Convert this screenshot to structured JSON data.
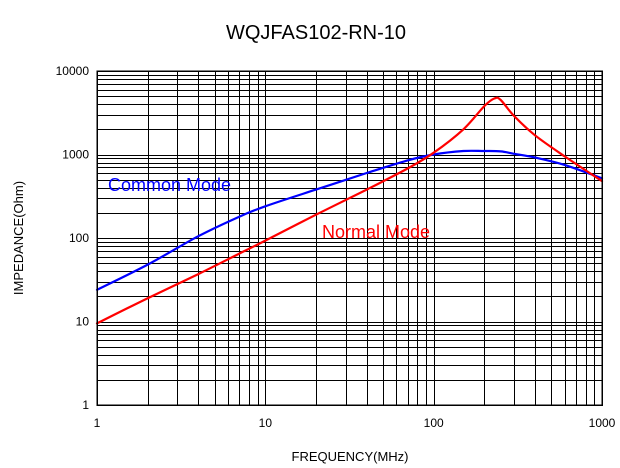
{
  "chart_data": {
    "type": "line",
    "title": "WQJFAS102-RN-10",
    "xlabel": "FREQUENCY(MHz)",
    "ylabel": "IMPEDANCE(Ohm)",
    "xscale": "log",
    "yscale": "log",
    "xlim": [
      1,
      1000
    ],
    "ylim": [
      1,
      10000
    ],
    "grid": true,
    "x_tick_labels": [
      "1",
      "10",
      "100",
      "1000"
    ],
    "y_tick_labels": [
      "1",
      "10",
      "100",
      "1000",
      "10000"
    ],
    "series": [
      {
        "name": "Common Mode",
        "color": "#0000ff",
        "x": [
          1,
          2,
          4,
          7,
          10,
          20,
          40,
          70,
          100,
          150,
          200,
          250,
          300,
          400,
          600,
          1000
        ],
        "y": [
          24,
          48,
          105,
          180,
          240,
          380,
          600,
          850,
          1000,
          1100,
          1100,
          1090,
          1020,
          920,
          750,
          520
        ]
      },
      {
        "name": "Normal Mode",
        "color": "#ff0000",
        "x": [
          1,
          2,
          4,
          7,
          10,
          20,
          40,
          70,
          100,
          150,
          200,
          230,
          250,
          300,
          400,
          600,
          1000
        ],
        "y": [
          9.5,
          19,
          37,
          65,
          93,
          190,
          380,
          680,
          1050,
          2000,
          3800,
          4700,
          4500,
          2900,
          1700,
          950,
          480
        ]
      }
    ]
  }
}
